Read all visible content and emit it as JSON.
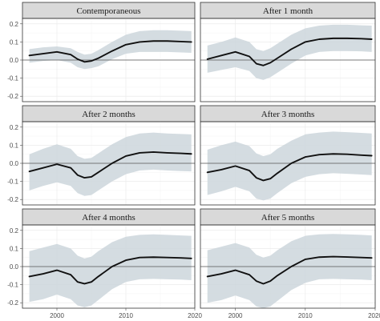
{
  "chart_data": {
    "type": "line",
    "facet_layout": "3x2",
    "grid": true,
    "zero_reference_line": true,
    "xlabel": "",
    "ylabel": "",
    "xlim": [
      1995,
      2020
    ],
    "x_ticks": [
      2000,
      2010,
      2020
    ],
    "ylim": [
      -0.23,
      0.23
    ],
    "y_ticks": [
      -0.2,
      -0.1,
      0.0,
      0.1,
      0.2
    ],
    "y_tick_labels": [
      "-0.2",
      "-0.1",
      "0.0",
      "0.1",
      "0.2"
    ],
    "colors": {
      "line": "#111111",
      "band": "#cdd6dc",
      "strip": "#d9d9d9",
      "zero": "#555555"
    },
    "x": [
      1996,
      1998,
      2000,
      2002,
      2003,
      2004,
      2005,
      2006,
      2008,
      2010,
      2012,
      2014,
      2016,
      2018,
      2019.5
    ],
    "panels": [
      {
        "title": "Contemporaneous",
        "series": [
          {
            "values": [
              0.025,
              0.035,
              0.045,
              0.03,
              0.005,
              -0.01,
              -0.005,
              0.01,
              0.05,
              0.085,
              0.1,
              0.105,
              0.105,
              0.102,
              0.1
            ],
            "lower": [
              -0.015,
              -0.005,
              0.0,
              -0.015,
              -0.04,
              -0.05,
              -0.045,
              -0.035,
              0.005,
              0.035,
              0.045,
              0.045,
              0.045,
              0.042,
              0.04
            ],
            "upper": [
              0.06,
              0.07,
              0.075,
              0.065,
              0.045,
              0.03,
              0.035,
              0.055,
              0.1,
              0.14,
              0.16,
              0.165,
              0.165,
              0.162,
              0.16
            ]
          }
        ]
      },
      {
        "title": "After 1 month",
        "series": [
          {
            "values": [
              0.005,
              0.025,
              0.045,
              0.02,
              -0.02,
              -0.03,
              -0.015,
              0.01,
              0.06,
              0.1,
              0.115,
              0.12,
              0.12,
              0.118,
              0.115
            ],
            "lower": [
              -0.07,
              -0.055,
              -0.04,
              -0.06,
              -0.1,
              -0.11,
              -0.095,
              -0.07,
              -0.02,
              0.025,
              0.045,
              0.05,
              0.05,
              0.048,
              0.045
            ],
            "upper": [
              0.08,
              0.1,
              0.125,
              0.1,
              0.06,
              0.05,
              0.065,
              0.09,
              0.14,
              0.175,
              0.19,
              0.195,
              0.195,
              0.192,
              0.19
            ]
          }
        ]
      },
      {
        "title": "After 2 months",
        "series": [
          {
            "values": [
              -0.045,
              -0.025,
              -0.005,
              -0.025,
              -0.065,
              -0.08,
              -0.075,
              -0.05,
              0.0,
              0.04,
              0.058,
              0.062,
              0.058,
              0.055,
              0.052
            ],
            "lower": [
              -0.15,
              -0.125,
              -0.105,
              -0.125,
              -0.165,
              -0.18,
              -0.175,
              -0.15,
              -0.1,
              -0.06,
              -0.04,
              -0.035,
              -0.04,
              -0.043,
              -0.045
            ],
            "upper": [
              0.05,
              0.08,
              0.105,
              0.08,
              0.04,
              0.025,
              0.03,
              0.055,
              0.105,
              0.145,
              0.165,
              0.17,
              0.165,
              0.162,
              0.16
            ]
          }
        ]
      },
      {
        "title": "After 3 months",
        "series": [
          {
            "values": [
              -0.05,
              -0.035,
              -0.015,
              -0.04,
              -0.08,
              -0.095,
              -0.085,
              -0.055,
              0.0,
              0.035,
              0.048,
              0.052,
              0.05,
              0.045,
              0.042
            ],
            "lower": [
              -0.175,
              -0.155,
              -0.13,
              -0.155,
              -0.195,
              -0.205,
              -0.195,
              -0.165,
              -0.11,
              -0.075,
              -0.06,
              -0.055,
              -0.058,
              -0.062,
              -0.065
            ],
            "upper": [
              0.075,
              0.1,
              0.12,
              0.095,
              0.055,
              0.04,
              0.05,
              0.08,
              0.125,
              0.16,
              0.17,
              0.175,
              0.172,
              0.168,
              0.165
            ]
          }
        ]
      },
      {
        "title": "After 4 months",
        "series": [
          {
            "values": [
              -0.055,
              -0.04,
              -0.02,
              -0.045,
              -0.085,
              -0.095,
              -0.085,
              -0.055,
              0.0,
              0.035,
              0.05,
              0.052,
              0.05,
              0.048,
              0.045
            ],
            "lower": [
              -0.195,
              -0.18,
              -0.155,
              -0.18,
              -0.215,
              -0.225,
              -0.215,
              -0.185,
              -0.125,
              -0.085,
              -0.07,
              -0.068,
              -0.07,
              -0.072,
              -0.075
            ],
            "upper": [
              0.085,
              0.105,
              0.125,
              0.1,
              0.06,
              0.045,
              0.055,
              0.085,
              0.135,
              0.165,
              0.175,
              0.178,
              0.175,
              0.172,
              0.17
            ]
          }
        ]
      },
      {
        "title": "After 5 months",
        "series": [
          {
            "values": [
              -0.055,
              -0.04,
              -0.02,
              -0.045,
              -0.08,
              -0.095,
              -0.08,
              -0.05,
              0.0,
              0.04,
              0.052,
              0.055,
              0.053,
              0.05,
              0.048
            ],
            "lower": [
              -0.2,
              -0.185,
              -0.16,
              -0.185,
              -0.22,
              -0.23,
              -0.22,
              -0.19,
              -0.13,
              -0.09,
              -0.07,
              -0.068,
              -0.07,
              -0.072,
              -0.075
            ],
            "upper": [
              0.09,
              0.11,
              0.13,
              0.105,
              0.065,
              0.05,
              0.06,
              0.09,
              0.14,
              0.17,
              0.178,
              0.18,
              0.178,
              0.175,
              0.172
            ]
          }
        ]
      }
    ]
  }
}
